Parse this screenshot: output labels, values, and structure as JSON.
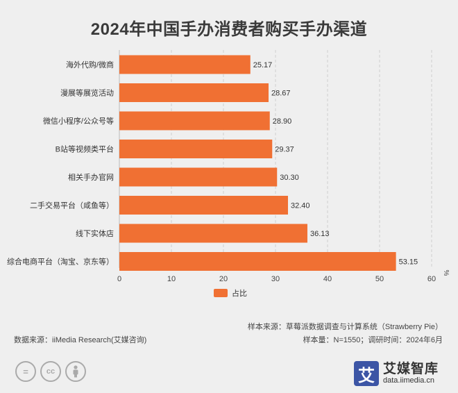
{
  "title": "2024年中国手办消费者购买手办渠道",
  "chart_data": {
    "type": "bar",
    "orientation": "horizontal",
    "categories": [
      "海外代购/微商",
      "漫展等展览活动",
      "微信小程序/公众号等",
      "B站等视频类平台",
      "相关手办官网",
      "二手交易平台（咸鱼等）",
      "线下实体店",
      "综合电商平台（淘宝、京东等）"
    ],
    "series": [
      {
        "name": "占比",
        "values": [
          25.17,
          28.67,
          28.9,
          29.37,
          30.3,
          32.4,
          36.13,
          53.15
        ],
        "color": "#f07033"
      }
    ],
    "value_labels": [
      "25.17",
      "28.67",
      "28.90",
      "29.37",
      "30.30",
      "32.40",
      "36.13",
      "53.15"
    ],
    "xlim": [
      0,
      60
    ],
    "xticks": [
      "0",
      "10",
      "20",
      "30",
      "40",
      "50",
      "60"
    ],
    "unit": "%",
    "grid": "vertical-dashed",
    "legend_position": "bottom-center"
  },
  "legend": {
    "label": "占比"
  },
  "notes": {
    "sample_source": "样本来源：草莓派数据调查与计算系统（Strawberry Pie）",
    "data_source": "数据来源：iiMedia Research(艾媒咨询)",
    "sample_info": "样本量：N=1550；调研时间：2024年6月"
  },
  "logo": {
    "mark": "艾",
    "name": "艾媒智库",
    "url": "data.iimedia.cn"
  },
  "icons": [
    "cc-equals-icon",
    "cc-icon",
    "cc-person-icon"
  ]
}
